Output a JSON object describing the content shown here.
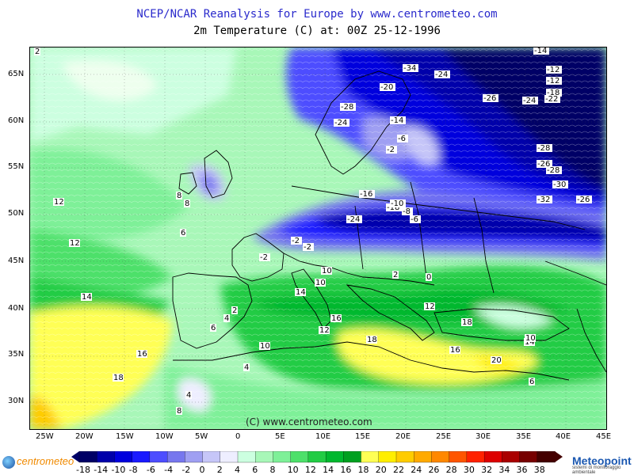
{
  "title": "NCEP/NCAR Reanalysis for Europe by www.centrometeo.com",
  "subtitle": "2m Temperature (C) at: 00Z 25-12-1996",
  "lat_labels": [
    "65N",
    "60N",
    "55N",
    "50N",
    "45N",
    "40N",
    "35N",
    "30N"
  ],
  "lon_labels": [
    "25W",
    "20W",
    "15W",
    "10W",
    "5W",
    "0",
    "5E",
    "10E",
    "15E",
    "20E",
    "25E",
    "30E",
    "35E",
    "40E",
    "45E"
  ],
  "watermark": "(C) www.centrometeo.com",
  "logo_left": "centrometeo",
  "logo_right": "Meteopoint",
  "logo_right_sub": "sistemi di monitoraggio ambientale",
  "legend": {
    "values": [
      "-18",
      "-14",
      "-10",
      "-8",
      "-6",
      "-4",
      "-2",
      "0",
      "2",
      "4",
      "6",
      "8",
      "10",
      "12",
      "14",
      "16",
      "18",
      "20",
      "22",
      "24",
      "26",
      "28",
      "30",
      "32",
      "34",
      "36",
      "38"
    ],
    "colors": [
      "#000066",
      "#0000aa",
      "#0000dd",
      "#1a1aff",
      "#4d4dff",
      "#7777ee",
      "#9f9ff2",
      "#c6c6f8",
      "#eeeeff",
      "#ccffe0",
      "#a8f7b8",
      "#7ef098",
      "#4de06a",
      "#22cc44",
      "#00b82e",
      "#00a020",
      "#ffff55",
      "#ffee00",
      "#ffcc00",
      "#ffaa00",
      "#ff8800",
      "#ff5500",
      "#ff2200",
      "#dd0000",
      "#aa0000",
      "#770000",
      "#440000"
    ]
  },
  "contour_labels": [
    "-14",
    "-12",
    "-12",
    "-18",
    "-22",
    "-34",
    "-24",
    "-20",
    "-28",
    "-24",
    "-26",
    "-24",
    "-28",
    "-14",
    "-6",
    "-2",
    "-26",
    "-28",
    "-30",
    "-32",
    "-26",
    "-24",
    "-18",
    "-16",
    "-10",
    "-8",
    "-6",
    "-2",
    "-2",
    "-2",
    "2",
    "4",
    "6",
    "6",
    "8",
    "8",
    "10",
    "10",
    "10",
    "12",
    "12",
    "12",
    "14",
    "14",
    "16",
    "16",
    "16",
    "18",
    "18",
    "18",
    "20",
    "14",
    "10",
    "12",
    "0",
    "2",
    "4",
    "6",
    "4",
    "8",
    "2"
  ],
  "colors": {
    "title": "#2a2acc",
    "land_border": "#000000",
    "watermark": "#222222"
  }
}
